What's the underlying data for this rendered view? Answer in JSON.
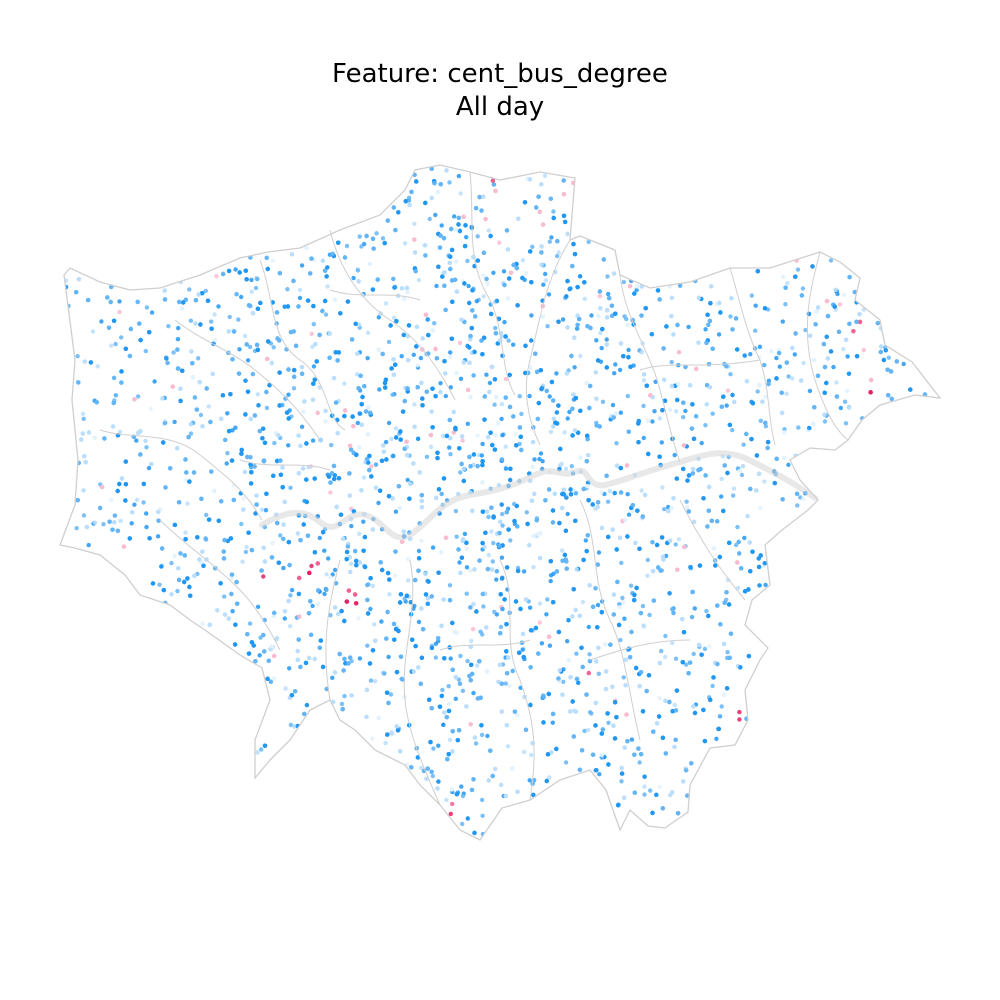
{
  "map": {
    "title_line1": "Feature: cent_bus_degree",
    "title_line2": "All day",
    "colors": {
      "boundary": "#cfcfcf",
      "river": "#d6d6d6",
      "dot_strong": "#2196f3",
      "dot_mid": "#64b5f6",
      "dot_light": "#bbdefb",
      "dot_faint": "#e3f2fd",
      "dot_pink_light": "#f8bbd0",
      "dot_pink": "#f06292",
      "dot_pink_strong": "#e91e63",
      "background": "#ffffff"
    },
    "layers": [
      "borough-boundaries",
      "thames-river",
      "bus-stop-points"
    ]
  }
}
